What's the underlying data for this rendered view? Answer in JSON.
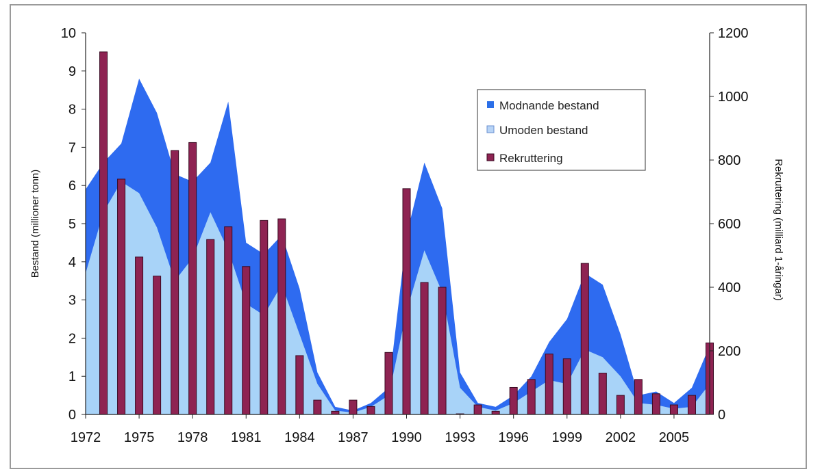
{
  "colors": {
    "mature": "#2E6BF0",
    "immature": "#A8D3F8",
    "recruitment": "#8E2352",
    "recruitment_edge": "#3A0A22",
    "legend_mature": "#2B6FE8",
    "legend_immature": "#B8D4F6",
    "legend_recruitment": "#8E2352"
  },
  "chart_data": {
    "type": "area+bar",
    "title": "",
    "xlabel": "",
    "ylabel": "Bestand (millioner tonn)",
    "y2label": "Rekruttering (milliard 1-åringar)",
    "ylim": [
      0,
      10
    ],
    "y2lim": [
      0,
      1200
    ],
    "xlim": [
      1972,
      2007
    ],
    "grid": false,
    "legend_position": "upper-right",
    "x_tick_labels": [
      "1972",
      "1975",
      "1978",
      "1981",
      "1984",
      "1987",
      "1990",
      "1993",
      "1996",
      "1999",
      "2002",
      "2005"
    ],
    "y_tick_labels": [
      "0",
      "1",
      "2",
      "3",
      "4",
      "5",
      "6",
      "7",
      "8",
      "9",
      "10"
    ],
    "y2_tick_labels": [
      "0",
      "200",
      "400",
      "600",
      "800",
      "1000",
      "1200"
    ],
    "legend": [
      "Modnande bestand",
      "Umoden bestand",
      "Rekruttering"
    ],
    "series": [
      {
        "name": "Modnande bestand",
        "type": "area",
        "axis": "left",
        "x": [
          1972,
          1973,
          1974,
          1975,
          1976,
          1977,
          1978,
          1979,
          1980,
          1981,
          1982,
          1983,
          1984,
          1985,
          1986,
          1987,
          1988,
          1989,
          1990,
          1991,
          1992,
          1993,
          1994,
          1995,
          1996,
          1997,
          1998,
          1999,
          2000,
          2001,
          2002,
          2003,
          2004,
          2005,
          2006,
          2007
        ],
        "values": [
          5.9,
          6.6,
          7.1,
          8.8,
          7.9,
          6.3,
          6.1,
          6.6,
          8.2,
          4.5,
          4.2,
          4.7,
          3.3,
          1.1,
          0.2,
          0.1,
          0.3,
          0.7,
          4.7,
          6.6,
          5.4,
          1.1,
          0.3,
          0.2,
          0.5,
          1.0,
          1.9,
          2.5,
          3.7,
          3.4,
          2.1,
          0.5,
          0.6,
          0.3,
          0.7,
          1.8
        ]
      },
      {
        "name": "Umoden bestand",
        "type": "area",
        "axis": "left",
        "x": [
          1972,
          1973,
          1974,
          1975,
          1976,
          1977,
          1978,
          1979,
          1980,
          1981,
          1982,
          1983,
          1984,
          1985,
          1986,
          1987,
          1988,
          1989,
          1990,
          1991,
          1992,
          1993,
          1994,
          1995,
          1996,
          1997,
          1998,
          1999,
          2000,
          2001,
          2002,
          2003,
          2004,
          2005,
          2006,
          2007
        ],
        "values": [
          3.7,
          5.3,
          6.1,
          5.8,
          4.9,
          3.5,
          4.1,
          5.3,
          4.3,
          2.9,
          2.6,
          3.4,
          2.1,
          0.8,
          0.1,
          0.05,
          0.2,
          0.5,
          2.7,
          4.3,
          3.2,
          0.7,
          0.2,
          0.1,
          0.3,
          0.6,
          0.9,
          0.8,
          1.7,
          1.5,
          1.0,
          0.3,
          0.25,
          0.15,
          0.2,
          0.8
        ]
      },
      {
        "name": "Rekruttering",
        "type": "bar",
        "axis": "right",
        "x": [
          1973,
          1974,
          1975,
          1976,
          1977,
          1978,
          1979,
          1980,
          1981,
          1982,
          1983,
          1984,
          1985,
          1986,
          1987,
          1988,
          1989,
          1990,
          1991,
          1992,
          1993,
          1994,
          1995,
          1996,
          1997,
          1998,
          1999,
          2000,
          2001,
          2002,
          2003,
          2004,
          2005,
          2006,
          2007
        ],
        "values": [
          1140,
          740,
          495,
          435,
          830,
          855,
          550,
          590,
          465,
          610,
          615,
          185,
          45,
          10,
          45,
          25,
          195,
          710,
          415,
          400,
          2,
          30,
          10,
          85,
          110,
          190,
          175,
          475,
          130,
          60,
          110,
          65,
          30,
          60,
          225
        ]
      }
    ]
  }
}
